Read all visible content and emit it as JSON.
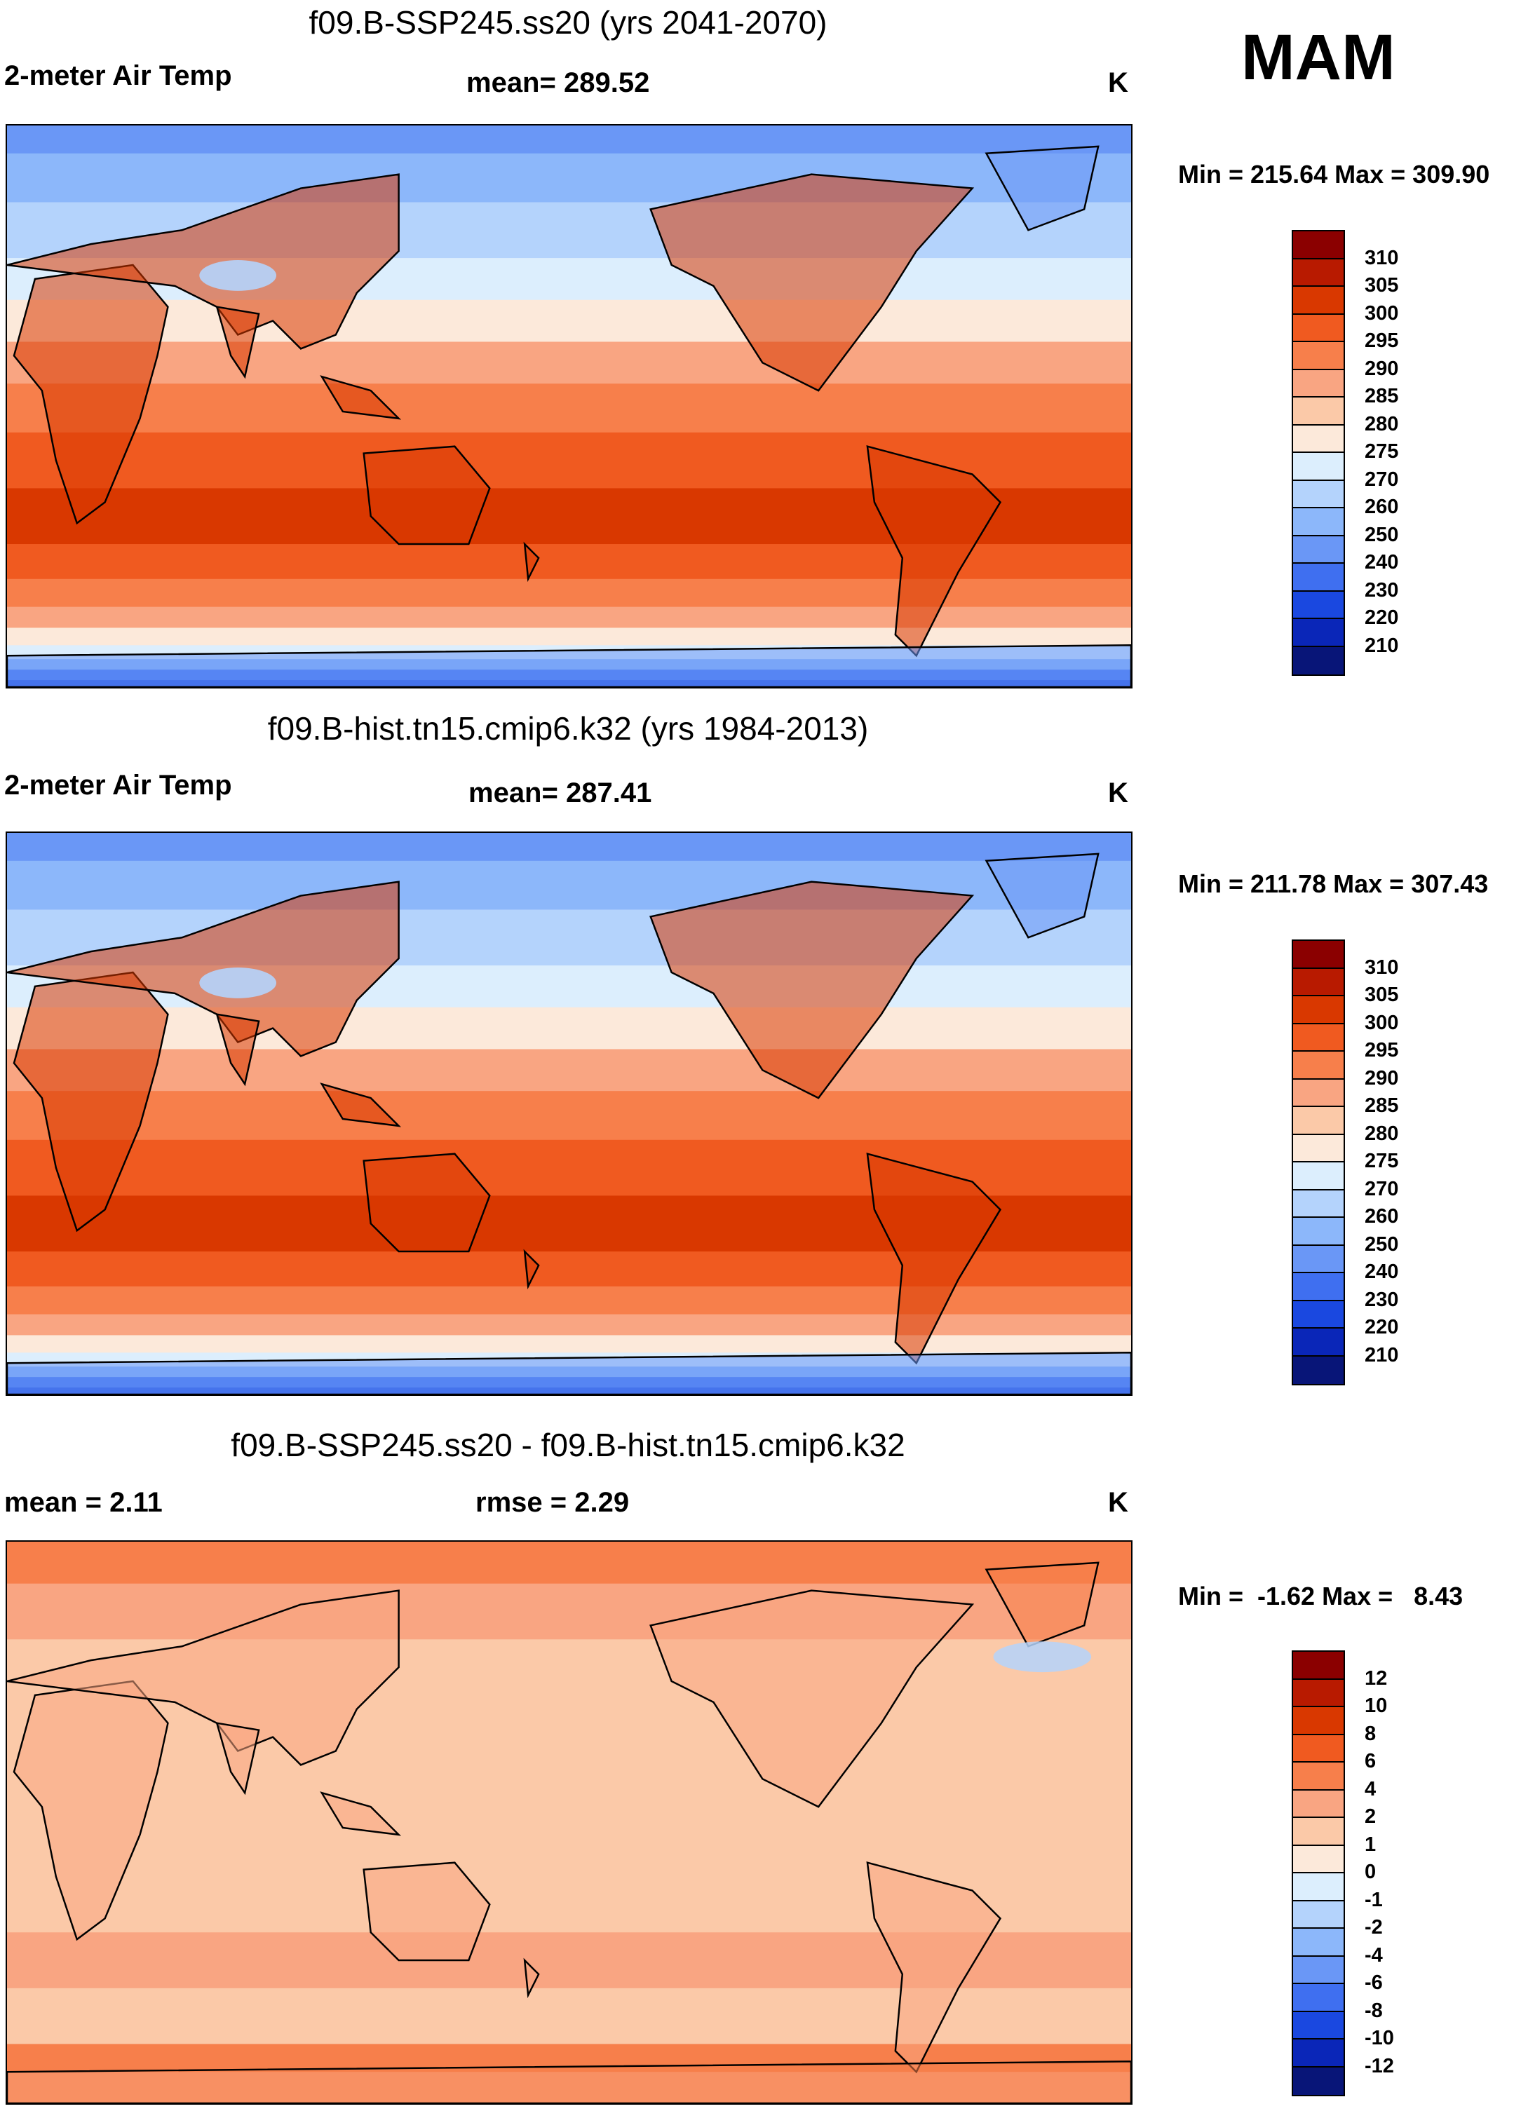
{
  "season": "MAM",
  "panels": [
    {
      "title": "f09.B-SSP245.ss20 (yrs 2041-2070)",
      "left_label": "2-meter Air Temp",
      "center_label": "mean= 289.52",
      "units": "K",
      "minmax": "Min = 215.64 Max = 309.90",
      "style": "abs",
      "colorbar": {
        "labels": [
          "310",
          "305",
          "300",
          "295",
          "290",
          "285",
          "280",
          "275",
          "270",
          "260",
          "250",
          "240",
          "230",
          "220",
          "210"
        ],
        "colors": [
          "#8b0000",
          "#b81a00",
          "#d93800",
          "#f05a20",
          "#f77f4b",
          "#f9a582",
          "#fbc9a8",
          "#fce9da",
          "#dceefd",
          "#b4d3fc",
          "#8cb7fa",
          "#6a97f6",
          "#3f6ff0",
          "#1a48e0",
          "#0a26b8",
          "#081578"
        ]
      }
    },
    {
      "title": "f09.B-hist.tn15.cmip6.k32 (yrs 1984-2013)",
      "left_label": "2-meter Air Temp",
      "center_label": "mean= 287.41",
      "units": "K",
      "minmax": "Min = 211.78 Max = 307.43",
      "style": "abs",
      "colorbar": {
        "labels": [
          "310",
          "305",
          "300",
          "295",
          "290",
          "285",
          "280",
          "275",
          "270",
          "260",
          "250",
          "240",
          "230",
          "220",
          "210"
        ],
        "colors": [
          "#8b0000",
          "#b81a00",
          "#d93800",
          "#f05a20",
          "#f77f4b",
          "#f9a582",
          "#fbc9a8",
          "#fce9da",
          "#dceefd",
          "#b4d3fc",
          "#8cb7fa",
          "#6a97f6",
          "#3f6ff0",
          "#1a48e0",
          "#0a26b8",
          "#081578"
        ]
      }
    },
    {
      "title": "f09.B-SSP245.ss20 - f09.B-hist.tn15.cmip6.k32",
      "left_label": "mean =   2.11",
      "center_label": "rmse =   2.29",
      "units": "K",
      "minmax": "Min =  -1.62 Max =   8.43",
      "style": "diff",
      "colorbar": {
        "labels": [
          "12",
          "10",
          "8",
          "6",
          "4",
          "2",
          "1",
          "0",
          "-1",
          "-2",
          "-4",
          "-6",
          "-8",
          "-10",
          "-12"
        ],
        "colors": [
          "#8b0000",
          "#b81a00",
          "#d93800",
          "#f05a20",
          "#f77f4b",
          "#f9a582",
          "#fbc9a8",
          "#fce9da",
          "#dceefd",
          "#b4d3fc",
          "#8cb7fa",
          "#6a97f6",
          "#3f6ff0",
          "#1a48e0",
          "#0a26b8",
          "#081578"
        ]
      }
    }
  ]
}
